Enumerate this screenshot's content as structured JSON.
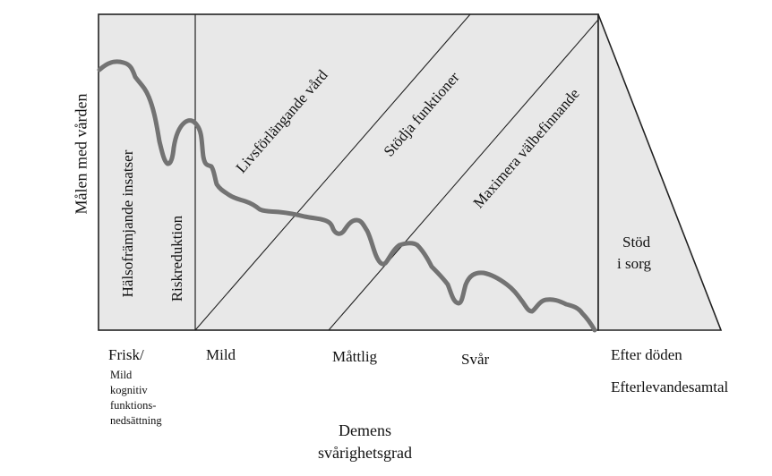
{
  "diagram": {
    "y_axis_label": "Målen med vården",
    "x_axis_label": [
      "Demens",
      "svårighetsgrad"
    ],
    "colors": {
      "panel_fill": "#e8e8e8",
      "line": "#222222",
      "curve": "#737373"
    },
    "bands": [
      "Hälsofrämjande insatser",
      "Riskreduktion",
      "Livsförlängande vård",
      "Stödja funktioner",
      "Maximera välbefinnande"
    ],
    "after_death_panel": [
      "Stöd",
      "i sorg"
    ],
    "stages": {
      "frisk": "Frisk/",
      "frisk_sub": [
        "Mild",
        "kognitiv",
        "funktions-",
        "nedsättning"
      ],
      "mild": "Mild",
      "mattlig": "Måttlig",
      "svar": "Svår",
      "efter_doden": "Efter döden",
      "efterlevandesamtal": "Efterlevandesamtal"
    }
  }
}
